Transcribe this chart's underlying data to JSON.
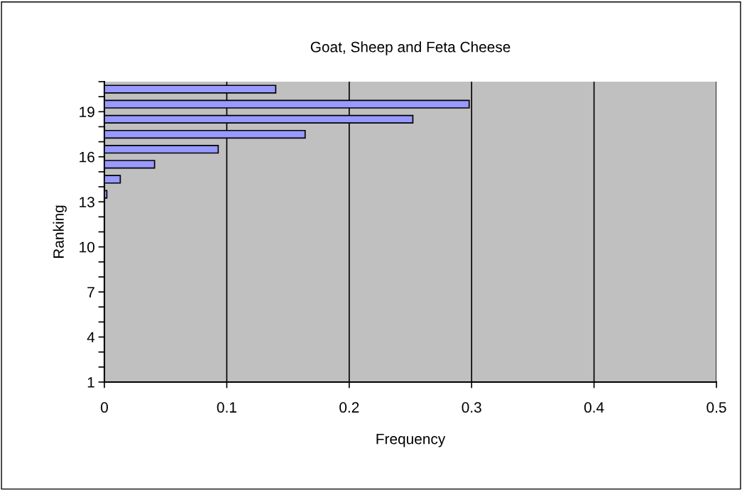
{
  "chart_data": {
    "type": "bar",
    "orientation": "horizontal",
    "title": "Goat, Sheep and Feta Cheese",
    "xlabel": "Frequency",
    "ylabel": "Ranking",
    "categories": [
      null,
      "19",
      null,
      null,
      "16",
      null,
      null,
      "13",
      null,
      null,
      "10",
      null,
      null,
      "7",
      null,
      null,
      "4",
      null,
      null,
      "1"
    ],
    "values": [
      0.14,
      0.298,
      0.252,
      0.164,
      0.093,
      0.041,
      0.013,
      0.002,
      0,
      0,
      0,
      0,
      0,
      0,
      0,
      0,
      0,
      0,
      0,
      0
    ],
    "color": "#9999ff",
    "xlim": [
      0,
      0.5
    ],
    "xticks": [
      0,
      0.1,
      0.2,
      0.3,
      0.4,
      0.5
    ],
    "grid": "x",
    "legend": false
  }
}
